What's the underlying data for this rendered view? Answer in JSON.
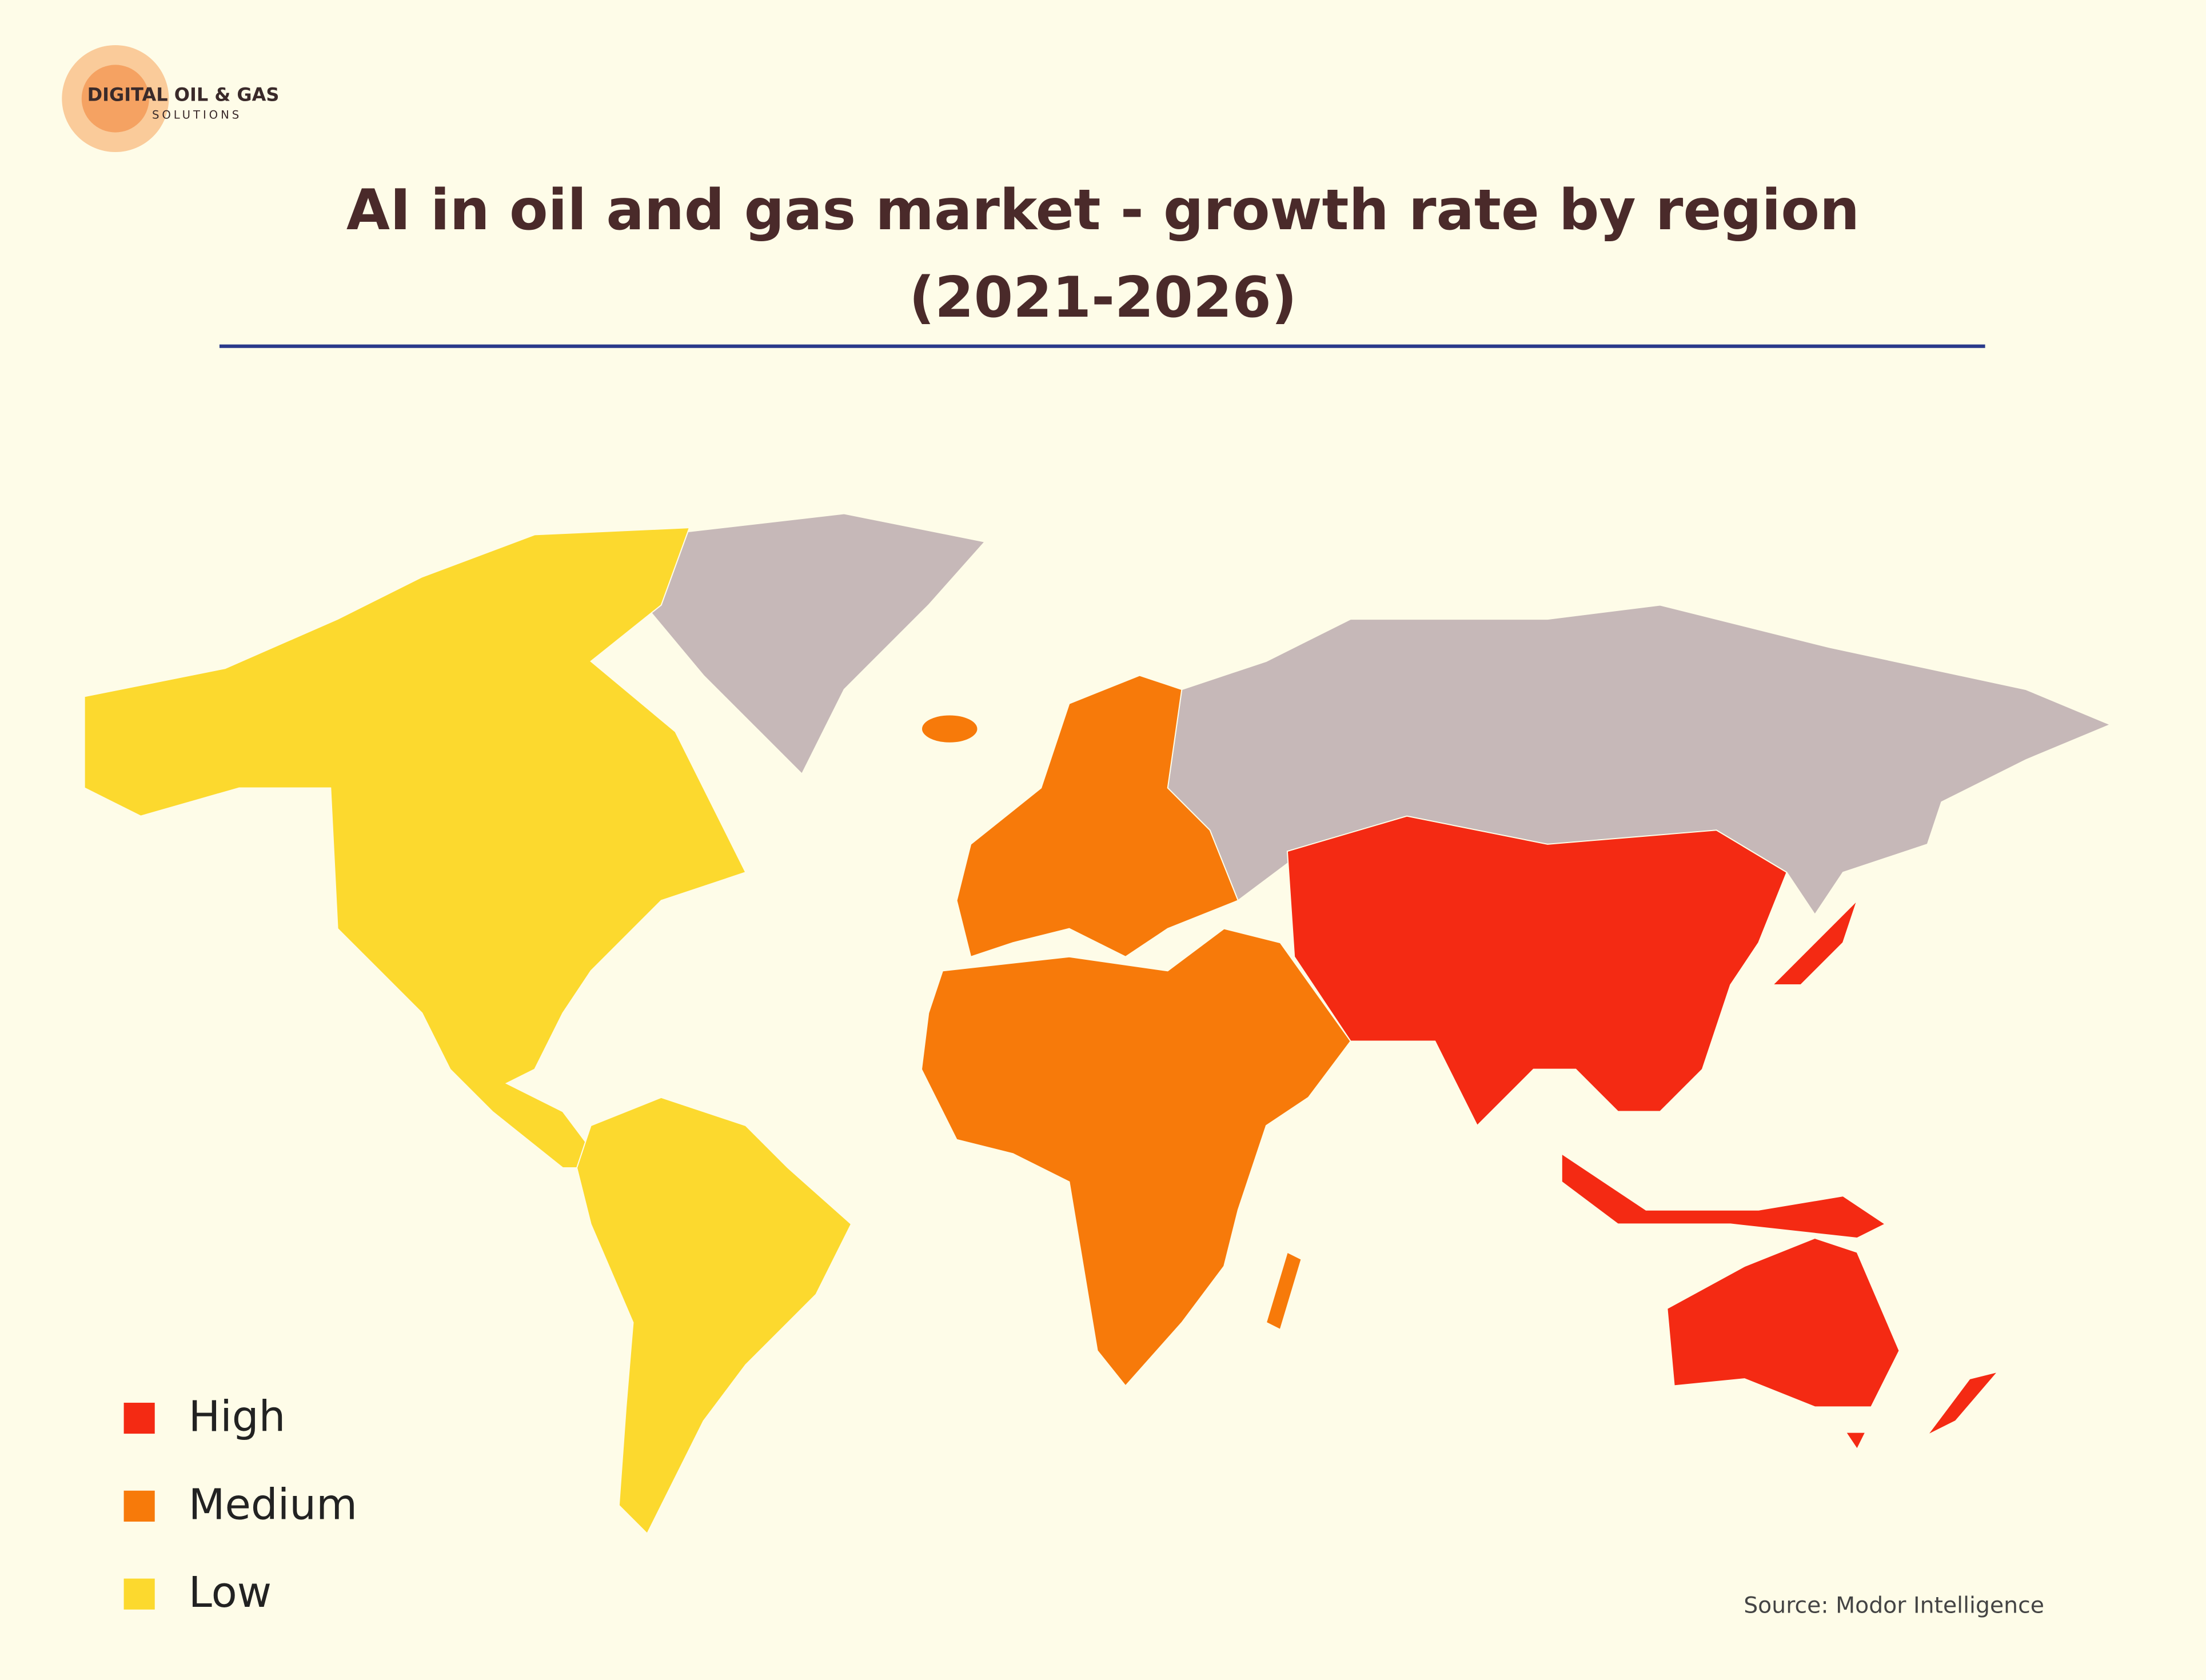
{
  "logo": {
    "name": "DIGITAL OIL & GAS",
    "tagline": "SOLUTIONS"
  },
  "title_lines": [
    "AI in oil and gas market - growth rate by region",
    "(2021-2026)"
  ],
  "legend": [
    {
      "label": "High",
      "color": "#f42a13"
    },
    {
      "label": "Medium",
      "color": "#f77a0a"
    },
    {
      "label": "Low",
      "color": "#fcd92e"
    }
  ],
  "source": "Source: Modor Intelligence"
}
